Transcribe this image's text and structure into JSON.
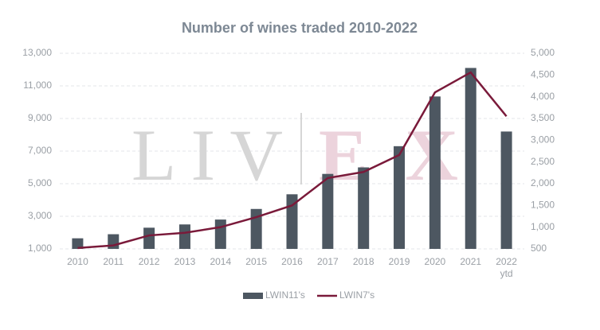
{
  "chart_data": {
    "type": "bar_line",
    "title": "Number of wines traded 2010-2022",
    "watermark": [
      "LIV",
      "EX"
    ],
    "categories": [
      "2010",
      "2011",
      "2012",
      "2013",
      "2014",
      "2015",
      "2016",
      "2017",
      "2018",
      "2019",
      "2020",
      "2021",
      "2022 ytd"
    ],
    "series": [
      {
        "name": "LWIN11's",
        "type": "bar",
        "color": "#4d5761",
        "axis": "y",
        "values": [
          1650,
          1900,
          2300,
          2500,
          2800,
          3450,
          4350,
          5600,
          6000,
          7300,
          10350,
          12100,
          8200
        ]
      },
      {
        "name": "LWIN7's",
        "type": "line",
        "color": "#7a1a3a",
        "axis": "y2",
        "values": [
          520,
          580,
          810,
          870,
          1000,
          1230,
          1500,
          2130,
          2270,
          2660,
          4100,
          4560,
          3550
        ]
      }
    ],
    "ylim": [
      1000,
      13000
    ],
    "yticks": [
      {
        "value": 1000,
        "label": "1,000"
      },
      {
        "value": 3000,
        "label": "3,000"
      },
      {
        "value": 5000,
        "label": "5,000"
      },
      {
        "value": 7000,
        "label": "7,000"
      },
      {
        "value": 9000,
        "label": "9,000"
      },
      {
        "value": 11000,
        "label": "11,000"
      },
      {
        "value": 13000,
        "label": "13,000"
      }
    ],
    "y2lim": [
      500,
      5000
    ],
    "y2ticks": [
      500,
      {
        "value": 1000,
        "label": "1,000"
      },
      {
        "value": 1500,
        "label": "1,500"
      },
      {
        "value": 2000,
        "label": "2,000"
      },
      {
        "value": 2500,
        "label": "2,500"
      },
      {
        "value": 3000,
        "label": "3,000"
      },
      {
        "value": 3500,
        "label": "3,500"
      },
      {
        "value": 4000,
        "label": "4,000"
      },
      {
        "value": 4500,
        "label": "4,500"
      },
      {
        "value": 5000,
        "label": "5,000"
      }
    ],
    "grid": true,
    "legend": "bottom"
  }
}
